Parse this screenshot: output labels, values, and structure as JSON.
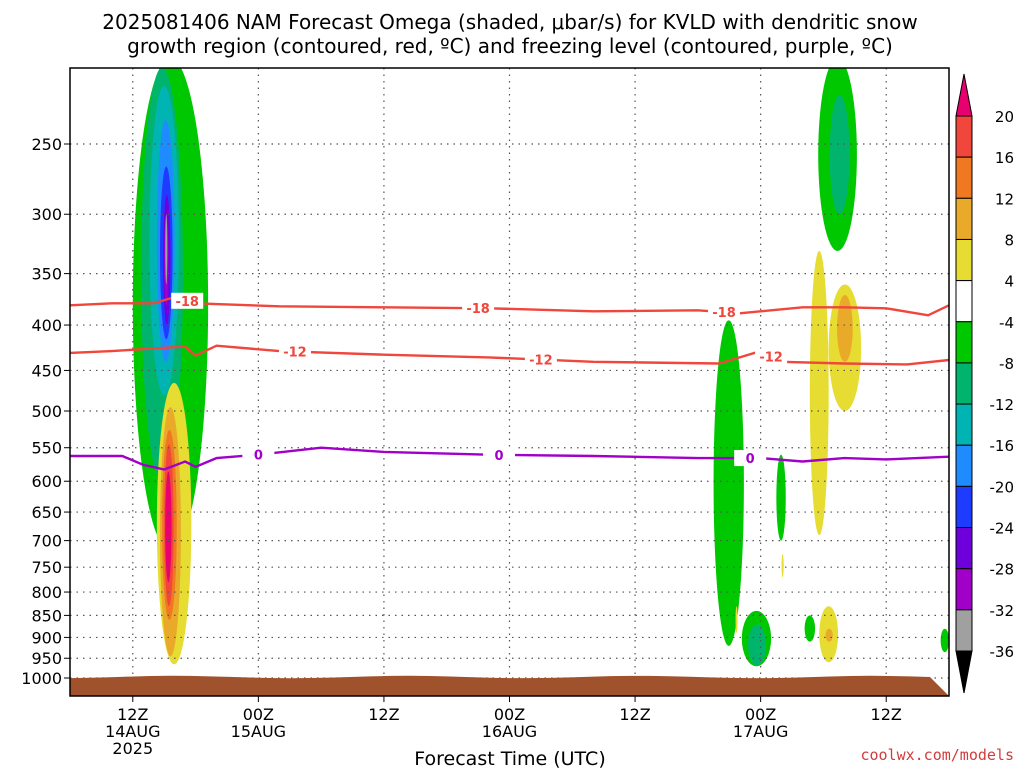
{
  "title": {
    "line1": "2025081406 NAM Forecast Omega (shaded, μbar/s) for KVLD with dendritic snow",
    "line2": "growth region (contoured, red, ºC) and freezing level (contoured, purple, ºC)"
  },
  "watermark": "coolwx.com/models",
  "colors": {
    "dendritic": "#f0463c",
    "freezing": "#a000c8",
    "ground": "#a0522d",
    "grid": "#555555"
  },
  "chart_data": {
    "type": "heatmap",
    "title": "2025081406 NAM Forecast Omega (shaded, μbar/s) for KVLD with dendritic snow growth region (contoured, red, ºC) and freezing level (contoured, purple, ºC)",
    "xlabel": "Forecast Time (UTC)",
    "ylabel": "",
    "x_unit": "hours from 2025-08-14 06Z",
    "xlim": [
      0,
      84
    ],
    "y_unit": "pressure (mb)",
    "ylim": [
      1020,
      200
    ],
    "y_scale": "log (inverted)",
    "y_ticks": [
      250,
      300,
      350,
      400,
      450,
      500,
      550,
      600,
      650,
      700,
      750,
      800,
      850,
      900,
      950,
      1000
    ],
    "x_ticks": [
      {
        "x": 6,
        "label": "12Z",
        "sub1": "14AUG",
        "sub2": "2025"
      },
      {
        "x": 18,
        "label": "00Z",
        "sub1": "15AUG",
        "sub2": ""
      },
      {
        "x": 30,
        "label": "12Z",
        "sub1": "",
        "sub2": ""
      },
      {
        "x": 42,
        "label": "00Z",
        "sub1": "16AUG",
        "sub2": ""
      },
      {
        "x": 54,
        "label": "12Z",
        "sub1": "",
        "sub2": ""
      },
      {
        "x": 66,
        "label": "00Z",
        "sub1": "17AUG",
        "sub2": ""
      },
      {
        "x": 78,
        "label": "12Z",
        "sub1": "",
        "sub2": ""
      }
    ],
    "grid": true,
    "colorbar": {
      "placement": "right",
      "labels": [
        20,
        16,
        12,
        8,
        4,
        -4,
        -8,
        -12,
        -16,
        -20,
        -24,
        -28,
        -32,
        -36
      ],
      "colors": [
        "#e8006e",
        "#f0463c",
        "#f07820",
        "#e8aa28",
        "#e6dc32",
        "#ffffff",
        "#00c800",
        "#00b46e",
        "#00b4b4",
        "#1e8cff",
        "#1e3cff",
        "#6e00dc",
        "#a000c8",
        "#a0a0a0",
        "#000000"
      ]
    },
    "contours": [
      {
        "name": "-18",
        "label": "-18",
        "color": "#f0463c",
        "points": [
          [
            0,
            380
          ],
          [
            4,
            378
          ],
          [
            8,
            378
          ],
          [
            10,
            372
          ],
          [
            12,
            378
          ],
          [
            20,
            381
          ],
          [
            30,
            382
          ],
          [
            40,
            383
          ],
          [
            50,
            386
          ],
          [
            60,
            385
          ],
          [
            64,
            388
          ],
          [
            70,
            382
          ],
          [
            74,
            382
          ],
          [
            78,
            383
          ],
          [
            82,
            390
          ],
          [
            84,
            380
          ]
        ],
        "labels_at": [
          11.2,
          39,
          62.5
        ]
      },
      {
        "name": "-12",
        "label": "-12",
        "color": "#f0463c",
        "points": [
          [
            0,
            430
          ],
          [
            4,
            428
          ],
          [
            8,
            425
          ],
          [
            11,
            423
          ],
          [
            12,
            433
          ],
          [
            14,
            422
          ],
          [
            20,
            428
          ],
          [
            30,
            432
          ],
          [
            40,
            435
          ],
          [
            50,
            440
          ],
          [
            62,
            442
          ],
          [
            64,
            435
          ],
          [
            66,
            428
          ],
          [
            68,
            440
          ],
          [
            74,
            442
          ],
          [
            80,
            443
          ],
          [
            84,
            438
          ]
        ],
        "labels_at": [
          21.5,
          45,
          67
        ]
      },
      {
        "name": "0",
        "label": "0",
        "color": "#a000c8",
        "points": [
          [
            0,
            562
          ],
          [
            5,
            562
          ],
          [
            7,
            575
          ],
          [
            9,
            582
          ],
          [
            11,
            570
          ],
          [
            12,
            578
          ],
          [
            14,
            565
          ],
          [
            18,
            560
          ],
          [
            24,
            550
          ],
          [
            30,
            556
          ],
          [
            40,
            560
          ],
          [
            50,
            562
          ],
          [
            60,
            565
          ],
          [
            66,
            565
          ],
          [
            70,
            570
          ],
          [
            74,
            565
          ],
          [
            78,
            567
          ],
          [
            84,
            563
          ]
        ],
        "labels_at": [
          18,
          41,
          65
        ]
      }
    ],
    "shaded_regions": [
      {
        "level": -8,
        "color": "#00c800",
        "x": [
          6.0,
          13.2
        ],
        "p_top": 200,
        "p_bot": 720
      },
      {
        "level": -12,
        "color": "#00b46e",
        "x": [
          6.8,
          10.8
        ],
        "p_top": 205,
        "p_bot": 600
      },
      {
        "level": -16,
        "color": "#00b4b4",
        "x": [
          7.6,
          10.4
        ],
        "p_top": 215,
        "p_bot": 480
      },
      {
        "level": -20,
        "color": "#1e8cff",
        "x": [
          8.3,
          10.0
        ],
        "p_top": 235,
        "p_bot": 440
      },
      {
        "level": -24,
        "color": "#1e3cff",
        "x": [
          8.6,
          9.8
        ],
        "p_top": 265,
        "p_bot": 415
      },
      {
        "level": -28,
        "color": "#6e00dc",
        "x": [
          8.9,
          9.6
        ],
        "p_top": 285,
        "p_bot": 400
      },
      {
        "level": -32,
        "color": "#a000c8",
        "x": [
          9.0,
          9.4
        ],
        "p_top": 300,
        "p_bot": 380
      },
      {
        "level": -36,
        "color": "#a0a0a0",
        "x": [
          9.1,
          9.3
        ],
        "p_top": 300,
        "p_bot": 360
      },
      {
        "level": 4,
        "color": "#e6dc32",
        "x": [
          8.3,
          11.6
        ],
        "p_top": 465,
        "p_bot": 965
      },
      {
        "level": 8,
        "color": "#e8aa28",
        "x": [
          8.6,
          10.6
        ],
        "p_top": 495,
        "p_bot": 945
      },
      {
        "level": 12,
        "color": "#f07820",
        "x": [
          8.8,
          10.2
        ],
        "p_top": 525,
        "p_bot": 860
      },
      {
        "level": 16,
        "color": "#f0463c",
        "x": [
          9.0,
          9.9
        ],
        "p_top": 545,
        "p_bot": 830
      },
      {
        "level": 20,
        "color": "#e8006e",
        "x": [
          9.1,
          9.7
        ],
        "p_top": 585,
        "p_bot": 780
      },
      {
        "level": -8,
        "color": "#00c800",
        "x": [
          61.5,
          64.4
        ],
        "p_top": 395,
        "p_bot": 920
      },
      {
        "level": -8,
        "color": "#00c800",
        "x": [
          67.5,
          68.4
        ],
        "p_top": 560,
        "p_bot": 700
      },
      {
        "level": -8,
        "color": "#00c800",
        "x": [
          64.2,
          67.0
        ],
        "p_top": 840,
        "p_bot": 970
      },
      {
        "level": -12,
        "color": "#00b46e",
        "x": [
          64.8,
          66.5
        ],
        "p_top": 870,
        "p_bot": 968
      },
      {
        "level": -8,
        "color": "#00c800",
        "x": [
          71.5,
          75.2
        ],
        "p_top": 200,
        "p_bot": 330
      },
      {
        "level": -12,
        "color": "#00b46e",
        "x": [
          72.6,
          74.5
        ],
        "p_top": 220,
        "p_bot": 300
      },
      {
        "level": -8,
        "color": "#00c800",
        "x": [
          70.2,
          71.2
        ],
        "p_top": 850,
        "p_bot": 910
      },
      {
        "level": -8,
        "color": "#00c800",
        "x": [
          83.2,
          84.0
        ],
        "p_top": 880,
        "p_bot": 935
      },
      {
        "level": 4,
        "color": "#e6dc32",
        "x": [
          70.7,
          72.5
        ],
        "p_top": 330,
        "p_bot": 690
      },
      {
        "level": 4,
        "color": "#e6dc32",
        "x": [
          72.5,
          75.6
        ],
        "p_top": 360,
        "p_bot": 500
      },
      {
        "level": 8,
        "color": "#e8aa28",
        "x": [
          73.3,
          74.8
        ],
        "p_top": 370,
        "p_bot": 440
      },
      {
        "level": 4,
        "color": "#e6dc32",
        "x": [
          71.6,
          73.4
        ],
        "p_top": 830,
        "p_bot": 960
      },
      {
        "level": 8,
        "color": "#e8aa28",
        "x": [
          72.2,
          72.9
        ],
        "p_top": 880,
        "p_bot": 910
      },
      {
        "level": 4,
        "color": "#e6dc32",
        "x": [
          63.6,
          63.8
        ],
        "p_top": 830,
        "p_bot": 890
      },
      {
        "level": 4,
        "color": "#e6dc32",
        "x": [
          68.0,
          68.2
        ],
        "p_top": 725,
        "p_bot": 770
      }
    ],
    "ground_p": 1000
  }
}
